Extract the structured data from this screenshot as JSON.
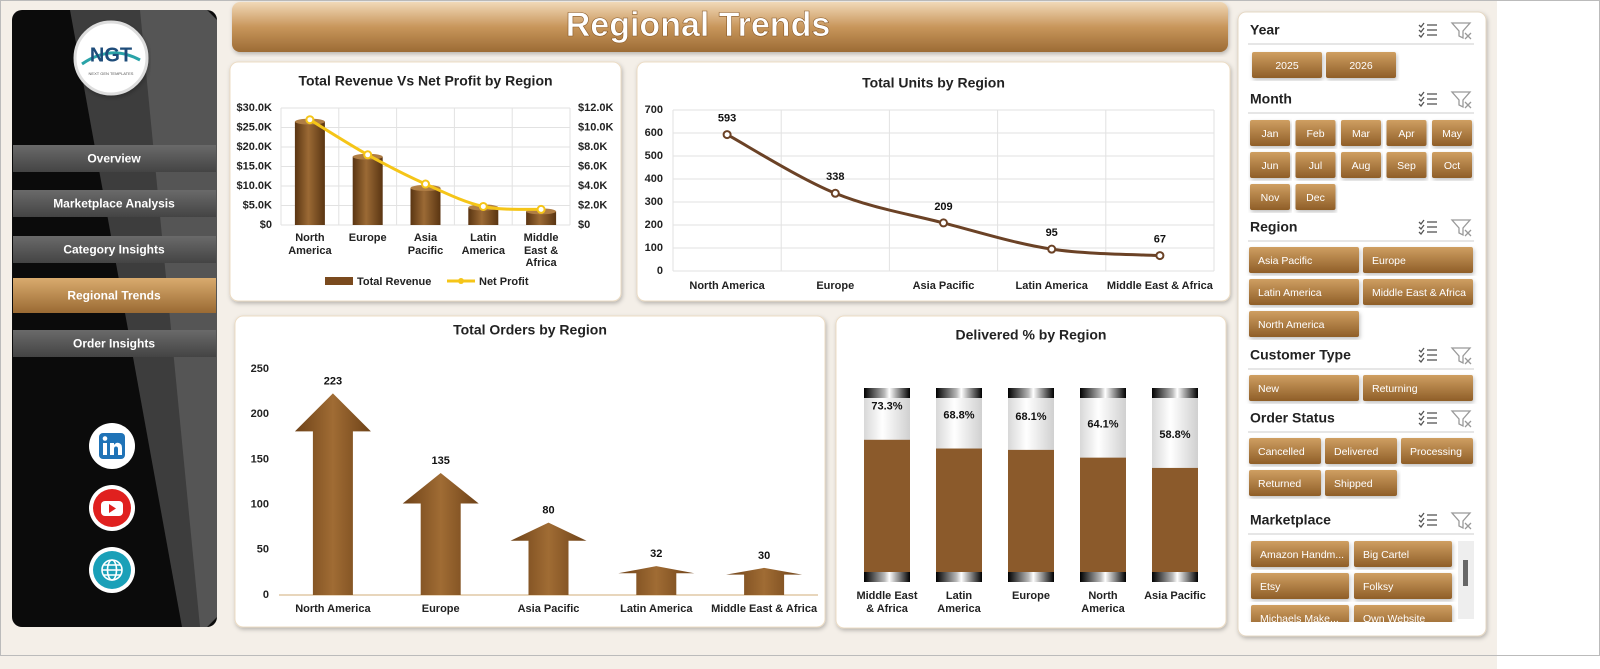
{
  "title": "Regional Trends",
  "logo": {
    "text": "NGT",
    "subtitle": "NEXT GEN TEMPLATES"
  },
  "nav": [
    "Overview",
    "Marketplace Analysis",
    "Category Insights",
    "Regional Trends",
    "Order Insights"
  ],
  "slicers": [
    {
      "name": "Year",
      "items": [
        "2025",
        "2026"
      ]
    },
    {
      "name": "Month",
      "items": [
        "Jan",
        "Feb",
        "Mar",
        "Apr",
        "May",
        "Jun",
        "Jul",
        "Aug",
        "Sep",
        "Oct",
        "Nov",
        "Dec"
      ]
    },
    {
      "name": "Region",
      "items": [
        "Asia Pacific",
        "Europe",
        "Latin America",
        "Middle East & Africa",
        "North America"
      ]
    },
    {
      "name": "Customer Type",
      "items": [
        "New",
        "Returning"
      ]
    },
    {
      "name": "Order Status",
      "items": [
        "Cancelled",
        "Delivered",
        "Processing",
        "Returned",
        "Shipped"
      ]
    },
    {
      "name": "Marketplace",
      "items": [
        "Amazon Handm...",
        "Big Cartel",
        "Etsy",
        "Folksy",
        "Michaels Make...",
        "Own Website"
      ]
    }
  ],
  "chart_data": [
    {
      "type": "combo",
      "title": "Total Revenue  Vs Net Profit by Region",
      "categories": [
        "North America",
        "Europe",
        "Asia Pacific",
        "Latin America",
        "Middle East & Africa"
      ],
      "series": [
        {
          "name": "Total Revenue",
          "type": "bar",
          "color": "#7a4a1e",
          "values": [
            26500,
            17500,
            9500,
            4500,
            3500
          ]
        },
        {
          "name": "Net Profit",
          "type": "line",
          "axis": "y2",
          "color": "#f5c518",
          "values": [
            10800,
            7200,
            4200,
            1900,
            1600
          ]
        }
      ],
      "ylim": [
        0,
        30000
      ],
      "yticks": [
        {
          "value": 0,
          "label": "$0"
        },
        {
          "value": 5000,
          "label": "$5.0K"
        },
        {
          "value": 10000,
          "label": "$10.0K"
        },
        {
          "value": 15000,
          "label": "$15.0K"
        },
        {
          "value": 20000,
          "label": "$20.0K"
        },
        {
          "value": 25000,
          "label": "$25.0K"
        },
        {
          "value": 30000,
          "label": "$30.0K"
        }
      ],
      "y2lim": [
        0,
        12000
      ],
      "y2ticks": [
        {
          "value": 0,
          "label": "$0"
        },
        {
          "value": 2000,
          "label": "$2.0K"
        },
        {
          "value": 4000,
          "label": "$4.0K"
        },
        {
          "value": 6000,
          "label": "$6.0K"
        },
        {
          "value": 8000,
          "label": "$8.0K"
        },
        {
          "value": 10000,
          "label": "$10.0K"
        },
        {
          "value": 12000,
          "label": "$12.0K"
        }
      ],
      "grid": true,
      "legend": "bottom"
    },
    {
      "type": "line",
      "title": "Total Units by Region",
      "categories": [
        "North America",
        "Europe",
        "Asia Pacific",
        "Latin America",
        "Middle East & Africa"
      ],
      "values": [
        593,
        338,
        209,
        95,
        67
      ],
      "color": "#6b4226",
      "ylim": [
        0,
        700
      ],
      "yticks": [
        0,
        100,
        200,
        300,
        400,
        500,
        600,
        700
      ],
      "grid": true
    },
    {
      "type": "arrow",
      "title": "Total Orders by Region",
      "categories": [
        "North America",
        "Europe",
        "Asia Pacific",
        "Latin America",
        "Middle East & Africa"
      ],
      "values": [
        223,
        135,
        80,
        32,
        30
      ],
      "color": "#8b5a2b",
      "ylim": [
        0,
        250
      ],
      "yticks": [
        0,
        50,
        100,
        150,
        200,
        250
      ],
      "grid": false
    },
    {
      "type": "cylinder",
      "title": "Delivered % by Region",
      "categories": [
        "Middle East & Africa",
        "Latin America",
        "Europe",
        "North America",
        "Asia Pacific"
      ],
      "values": [
        73.3,
        68.8,
        68.1,
        64.1,
        58.8
      ],
      "value_labels": [
        "73.3%",
        "68.8%",
        "68.1%",
        "64.1%",
        "58.8%"
      ],
      "color": "#8b5a2b",
      "ylim": [
        0,
        100
      ]
    }
  ]
}
